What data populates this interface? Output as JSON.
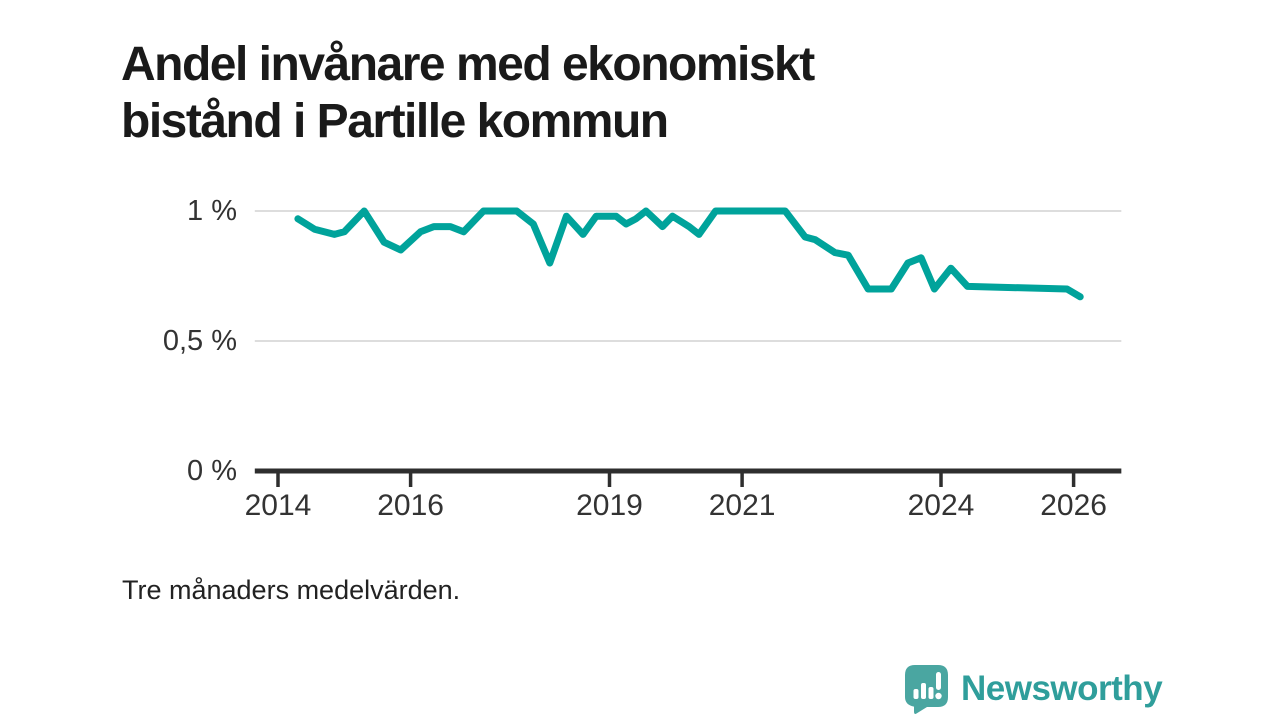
{
  "title": {
    "line1": "Andel invånare med ekonomiskt",
    "line2": "bistånd i Partille kommun"
  },
  "footnote": "Tre månaders medelvärden.",
  "branding": {
    "name": "Newsworthy",
    "icon": "newsworthy-bubble-bar-chart-icon"
  },
  "colors": {
    "line": "#00a39b",
    "grid": "#dddddd",
    "axis": "#2e2e2e",
    "title_text": "#1a1a1a",
    "tick_text": "#333333",
    "brand_teal": "#2f9e9b",
    "brand_icon_teal": "#4aa6a1"
  },
  "chart_data": {
    "type": "line",
    "title": "Andel invånare med ekonomiskt bistånd i Partille kommun",
    "note": "Tre månaders medelvärden.",
    "grid": true,
    "legend": "none",
    "x_axis": {
      "ticks": [
        2014,
        2016,
        2019,
        2021,
        2024,
        2026
      ],
      "range": [
        2013.65,
        2026.72
      ]
    },
    "y_axis": {
      "unit": "%",
      "tick_labels": [
        "1 %",
        "0,5 %",
        "0 %"
      ],
      "tick_values": [
        1,
        0.5,
        0
      ],
      "range": [
        0,
        1.08
      ]
    },
    "series": [
      {
        "name": "Andel invånare med ekonomiskt bistånd",
        "color": "#00a39b",
        "points": [
          [
            2014.3,
            0.97
          ],
          [
            2014.55,
            0.93
          ],
          [
            2014.85,
            0.91
          ],
          [
            2015.0,
            0.92
          ],
          [
            2015.3,
            1.0
          ],
          [
            2015.6,
            0.88
          ],
          [
            2015.85,
            0.85
          ],
          [
            2016.15,
            0.92
          ],
          [
            2016.35,
            0.94
          ],
          [
            2016.6,
            0.94
          ],
          [
            2016.8,
            0.92
          ],
          [
            2017.1,
            1.0
          ],
          [
            2017.6,
            1.0
          ],
          [
            2017.85,
            0.95
          ],
          [
            2018.1,
            0.8
          ],
          [
            2018.35,
            0.98
          ],
          [
            2018.6,
            0.91
          ],
          [
            2018.8,
            0.98
          ],
          [
            2019.1,
            0.98
          ],
          [
            2019.25,
            0.95
          ],
          [
            2019.4,
            0.97
          ],
          [
            2019.55,
            1.0
          ],
          [
            2019.8,
            0.94
          ],
          [
            2019.95,
            0.98
          ],
          [
            2020.2,
            0.94
          ],
          [
            2020.35,
            0.91
          ],
          [
            2020.6,
            1.0
          ],
          [
            2021.65,
            1.0
          ],
          [
            2021.95,
            0.9
          ],
          [
            2022.1,
            0.89
          ],
          [
            2022.4,
            0.84
          ],
          [
            2022.6,
            0.83
          ],
          [
            2022.9,
            0.7
          ],
          [
            2023.25,
            0.7
          ],
          [
            2023.5,
            0.8
          ],
          [
            2023.7,
            0.82
          ],
          [
            2023.9,
            0.7
          ],
          [
            2024.15,
            0.78
          ],
          [
            2024.4,
            0.71
          ],
          [
            2025.9,
            0.7
          ],
          [
            2026.1,
            0.67
          ]
        ]
      }
    ]
  }
}
